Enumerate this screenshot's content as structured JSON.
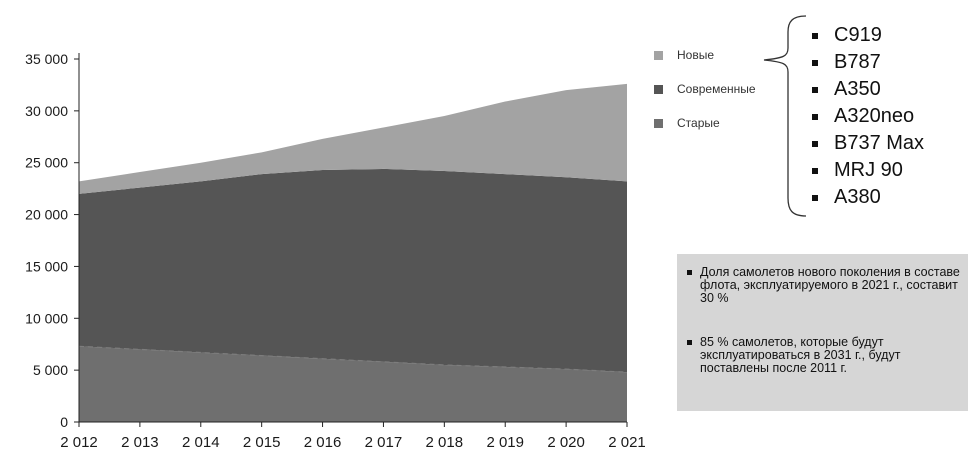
{
  "chart_data": {
    "type": "area",
    "stacked": true,
    "x": [
      2012,
      2013,
      2014,
      2015,
      2016,
      2017,
      2018,
      2019,
      2020,
      2021
    ],
    "x_tick_labels": [
      "2 012",
      "2 013",
      "2 014",
      "2 015",
      "2 016",
      "2 017",
      "2 018",
      "2 019",
      "2 020",
      "2 021"
    ],
    "y_tick_labels": [
      "0",
      "5 000",
      "10 000",
      "15 000",
      "20 000",
      "25 000",
      "30 000",
      "35 000"
    ],
    "ylim": [
      0,
      35000
    ],
    "grid": false,
    "legend_position": "right",
    "series": [
      {
        "name": "Старые",
        "color": "#6f6f6f",
        "values": [
          7300,
          7000,
          6700,
          6400,
          6100,
          5800,
          5500,
          5300,
          5100,
          4800
        ]
      },
      {
        "name": "Современные",
        "color": "#555555",
        "values": [
          14700,
          15600,
          16500,
          17500,
          18200,
          18600,
          18700,
          18600,
          18500,
          18400
        ]
      },
      {
        "name": "Новые",
        "color": "#a3a3a3",
        "values": [
          1200,
          1500,
          1800,
          2100,
          3000,
          4000,
          5300,
          7000,
          8400,
          9400
        ]
      }
    ]
  },
  "legend": [
    {
      "label": "Новые",
      "color": "#a3a3a3"
    },
    {
      "label": "Современные",
      "color": "#555555"
    },
    {
      "label": "Старые",
      "color": "#6f6f6f"
    }
  ],
  "new_models": [
    "C919",
    "B787",
    "A350",
    "A320neo",
    "B737 Max",
    "MRJ 90",
    "A380"
  ],
  "notes": {
    "note1": "Доля самолетов нового поколения в составе флота, эксплуатируемого в 2021 г., составит 30 %",
    "note2": "85 % самолетов, которые будут эксплуатироваться в 2031 г., будут поставлены после 2011 г."
  }
}
